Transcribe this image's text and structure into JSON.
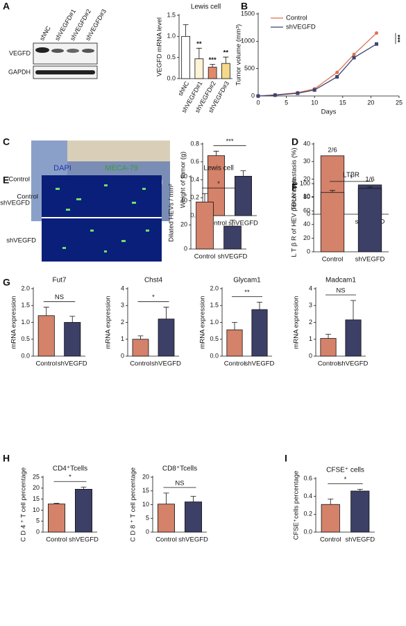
{
  "images": {
    "blot_lanes": [
      "shNC",
      "shVEGFD#1",
      "shVEGFD#2",
      "shVEGFD#3"
    ],
    "blot_rows": [
      "VEGFD",
      "GAPDH"
    ],
    "photo_rows": [
      "Control",
      "shVEGFD"
    ],
    "stain_channels": [
      "DAPI",
      "MECA-79"
    ],
    "stain_rows": [
      "Control",
      "shVEGFD"
    ]
  },
  "chart_data": [
    {
      "type": "bar",
      "panel": "A",
      "title": "Lewis cell",
      "ylabel": "VEGFD mRNA level",
      "categories": [
        "shNC",
        "shVEGFD#1",
        "shVEGFD#2",
        "shVEGFD#3"
      ],
      "values": [
        1.0,
        0.47,
        0.27,
        0.36
      ],
      "errors": [
        0.28,
        0.25,
        0.07,
        0.15
      ],
      "marks_above": [
        null,
        "**",
        "***",
        "**"
      ],
      "colors": [
        "#ffffff",
        "#fdf3d6",
        "#e08a6a",
        "#f5d98a"
      ],
      "rotate_labels": true,
      "ylim": [
        0,
        1.5
      ],
      "yticks": [
        {
          "value": 0,
          "label": "0.0"
        },
        0.5,
        {
          "value": 1,
          "label": "1.0"
        },
        1.5
      ]
    },
    {
      "type": "line",
      "panel": "B",
      "xlabel": "Days",
      "ylabel": "Tumor volume (mm³)",
      "x": [
        0,
        3,
        7,
        10,
        14,
        17,
        21
      ],
      "series": [
        {
          "name": "Control",
          "color": "#e0714f",
          "marker": "circle",
          "values": [
            0,
            20,
            60,
            130,
            430,
            760,
            1150
          ]
        },
        {
          "name": "shVEGFD",
          "color": "#3f4470",
          "marker": "square",
          "values": [
            0,
            15,
            50,
            110,
            350,
            700,
            950
          ]
        }
      ],
      "annotation": "***",
      "legend": "upper-left",
      "xlim": [
        0,
        25
      ],
      "xticks": [
        0,
        5,
        10,
        15,
        20,
        25
      ],
      "ylim": [
        0,
        1500
      ],
      "yticks": [
        0,
        500,
        1000,
        1500
      ]
    },
    {
      "type": "bar",
      "panel": "C",
      "ylabel": "Weight of tumor (g)",
      "categories": [
        "Control",
        "shVEGFD"
      ],
      "values": [
        0.67,
        0.44
      ],
      "errors": [
        0.05,
        0.06
      ],
      "significance": "***",
      "colors": [
        "#d4826a",
        "#3c3f66"
      ],
      "ylim": [
        0,
        0.8
      ],
      "yticks": [
        {
          "value": 0,
          "label": "0.0"
        },
        0.2,
        0.4,
        0.6,
        0.8
      ]
    },
    {
      "type": "bar",
      "panel": "D",
      "ylabel": "TDLN metastasis (%)",
      "categories": [
        "Control",
        "shVEGFD"
      ],
      "values": [
        33.3,
        16.7
      ],
      "value_labels": [
        "2/6",
        "1/6"
      ],
      "colors": [
        "#d4826a",
        "#3c3f66"
      ],
      "ylim": [
        0,
        40
      ],
      "yticks": [
        0,
        10,
        20,
        30,
        40
      ]
    },
    {
      "type": "bar",
      "panel": "E",
      "title": "Lewis cell",
      "ylabel": "Dilated HEVs / mm²",
      "categories": [
        "Control",
        "shVEGFD"
      ],
      "values": [
        39,
        19
      ],
      "errors": [
        7,
        5
      ],
      "significance": "*",
      "colors": [
        "#d4826a",
        "#3c3f66"
      ],
      "ylim": [
        0,
        60
      ],
      "yticks": [
        0,
        20,
        40,
        60
      ]
    },
    {
      "type": "bar",
      "panel": "F",
      "title": "LTβR",
      "ylabel": "L T β R  of HEV percentage",
      "categories": [
        "Control",
        "shVEGFD"
      ],
      "values": [
        87,
        93
      ],
      "errors": [
        3,
        2
      ],
      "significance": "*",
      "colors": [
        "#d4826a",
        "#3c3f66"
      ],
      "ylim": [
        0,
        100
      ],
      "yticks": [
        0,
        20,
        40,
        60,
        80,
        100
      ]
    },
    {
      "type": "bar",
      "panel": "G",
      "title": "Fut7",
      "ylabel": "mRNA expression",
      "categories": [
        "Control",
        "shVEGFD"
      ],
      "values": [
        1.2,
        1.0
      ],
      "errors": [
        0.25,
        0.18
      ],
      "significance": "NS",
      "colors": [
        "#d4826a",
        "#3c3f66"
      ],
      "ylim": [
        0,
        2
      ],
      "yticks": [
        {
          "value": 0,
          "label": "0.0"
        },
        0.5,
        {
          "value": 1,
          "label": "1.0"
        },
        1.5,
        {
          "value": 2,
          "label": "2.0"
        }
      ]
    },
    {
      "type": "bar",
      "title": "Chst4",
      "ylabel": "mRNA expression",
      "categories": [
        "Control",
        "shVEGFD"
      ],
      "values": [
        1.0,
        2.2
      ],
      "errors": [
        0.2,
        0.7
      ],
      "significance": "*",
      "colors": [
        "#d4826a",
        "#3c3f66"
      ],
      "ylim": [
        0,
        4
      ],
      "yticks": [
        0,
        1,
        2,
        3,
        4
      ]
    },
    {
      "type": "bar",
      "title": "Glycam1",
      "ylabel": "mRNA expression",
      "categories": [
        "Control",
        "shVEGFD"
      ],
      "values": [
        0.78,
        1.38
      ],
      "errors": [
        0.22,
        0.22
      ],
      "significance": "**",
      "colors": [
        "#d4826a",
        "#3c3f66"
      ],
      "ylim": [
        0,
        2
      ],
      "yticks": [
        {
          "value": 0,
          "label": "0.0"
        },
        0.5,
        {
          "value": 1,
          "label": "1.0"
        },
        1.5,
        {
          "value": 2,
          "label": "2.0"
        }
      ]
    },
    {
      "type": "bar",
      "title": "Madcam1",
      "ylabel": "mRNA expression",
      "categories": [
        "Control",
        "shVEGFD"
      ],
      "values": [
        1.05,
        2.15
      ],
      "errors": [
        0.25,
        1.15
      ],
      "significance": "NS",
      "colors": [
        "#d4826a",
        "#3c3f66"
      ],
      "ylim": [
        0,
        4
      ],
      "yticks": [
        0,
        1,
        2,
        3,
        4
      ]
    },
    {
      "type": "bar",
      "panel": "H",
      "title": "CD4⁺Tcells",
      "ylabel": "C D 4 ⁺ T cell percentage",
      "categories": [
        "Control",
        "shVEGFD"
      ],
      "values": [
        12.8,
        19.5
      ],
      "errors": [
        0.3,
        1.0
      ],
      "significance": "*",
      "colors": [
        "#d4826a",
        "#3c3f66"
      ],
      "ylim": [
        0,
        25
      ],
      "yticks": [
        0,
        5,
        10,
        15,
        20,
        25
      ]
    },
    {
      "type": "bar",
      "title": "CD8⁺Tcells",
      "ylabel": "C D 8 ⁺ T cell percentage",
      "categories": [
        "Control",
        "shVEGFD"
      ],
      "values": [
        10.2,
        11.0
      ],
      "errors": [
        4,
        2
      ],
      "significance": "NS",
      "colors": [
        "#d4826a",
        "#3c3f66"
      ],
      "ylim": [
        0,
        20
      ],
      "yticks": [
        0,
        5,
        10,
        15,
        20
      ]
    },
    {
      "type": "bar",
      "panel": "I",
      "title": "CFSE⁺ cells",
      "ylabel": "CFSE⁺cells percentage",
      "categories": [
        "Control",
        "shVEGFD"
      ],
      "values": [
        0.31,
        0.46
      ],
      "errors": [
        0.06,
        0.02
      ],
      "significance": "*",
      "colors": [
        "#d4826a",
        "#3c3f66"
      ],
      "ylim": [
        0,
        0.6
      ],
      "yticks": [
        {
          "value": 0,
          "label": "0.0"
        },
        0.2,
        0.4,
        0.6
      ]
    }
  ]
}
